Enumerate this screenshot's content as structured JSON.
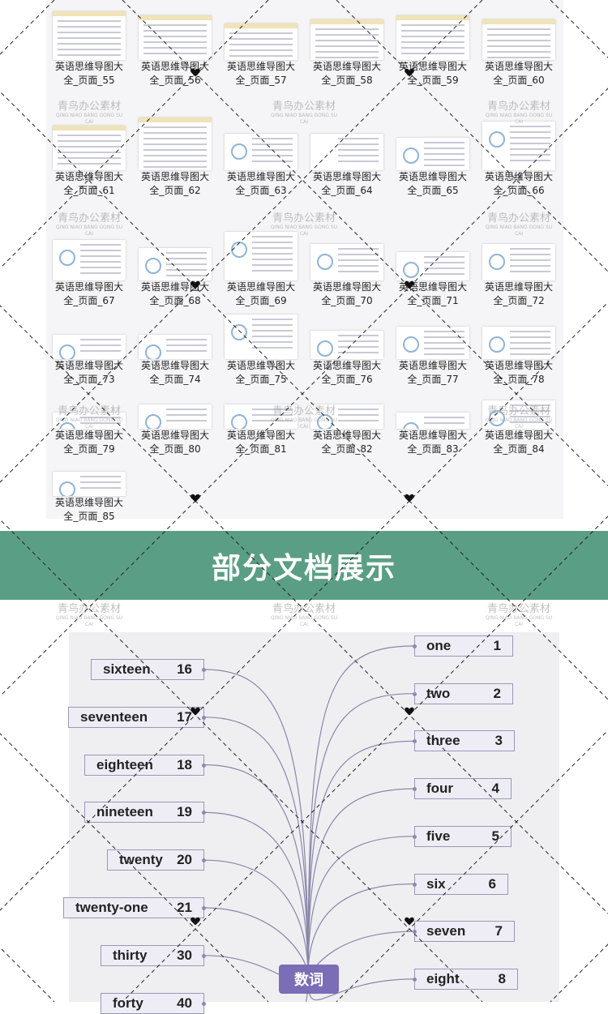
{
  "thumbnails": [
    {
      "label": "英语思维导图大全_页面_55"
    },
    {
      "label": "英语思维导图大全_页面_56"
    },
    {
      "label": "英语思维导图大全_页面_57"
    },
    {
      "label": "英语思维导图大全_页面_58"
    },
    {
      "label": "英语思维导图大全_页面_59"
    },
    {
      "label": "英语思维导图大全_页面_60"
    },
    {
      "label": "英语思维导图大全_页面_61"
    },
    {
      "label": "英语思维导图大全_页面_62"
    },
    {
      "label": "英语思维导图大全_页面_63"
    },
    {
      "label": "英语思维导图大全_页面_64"
    },
    {
      "label": "英语思维导图大全_页面_65"
    },
    {
      "label": "英语思维导图大全_页面_66"
    },
    {
      "label": "英语思维导图大全_页面_67"
    },
    {
      "label": "英语思维导图大全_页面_68"
    },
    {
      "label": "英语思维导图大全_页面_69"
    },
    {
      "label": "英语思维导图大全_页面_70"
    },
    {
      "label": "英语思维导图大全_页面_71"
    },
    {
      "label": "英语思维导图大全_页面_72"
    },
    {
      "label": "英语思维导图大全_页面_73"
    },
    {
      "label": "英语思维导图大全_页面_74"
    },
    {
      "label": "英语思维导图大全_页面_75"
    },
    {
      "label": "英语思维导图大全_页面_76"
    },
    {
      "label": "英语思维导图大全_页面_77"
    },
    {
      "label": "英语思维导图大全_页面_78"
    },
    {
      "label": "英语思维导图大全_页面_79"
    },
    {
      "label": "英语思维导图大全_页面_80"
    },
    {
      "label": "英语思维导图大全_页面_81"
    },
    {
      "label": "英语思维导图大全_页面_82"
    },
    {
      "label": "英语思维导图大全_页面_83"
    },
    {
      "label": "英语思维导图大全_页面_84"
    },
    {
      "label": "英语思维导图大全_页面_85"
    }
  ],
  "banner": {
    "title": "部分文档展示",
    "color": "#5b9e86"
  },
  "watermark": {
    "cn": "青鸟办公素材",
    "en": "QING NIAO BANG GONG SU CAI"
  },
  "mindmap": {
    "center": "数词",
    "center_color": "#7c6db7",
    "left": [
      {
        "word": "sixteen",
        "num": "16"
      },
      {
        "word": "seventeen",
        "num": "17"
      },
      {
        "word": "eighteen",
        "num": "18"
      },
      {
        "word": "nineteen",
        "num": "19"
      },
      {
        "word": "twenty",
        "num": "20"
      },
      {
        "word": "twenty-one",
        "num": "21"
      },
      {
        "word": "thirty",
        "num": "30"
      },
      {
        "word": "forty",
        "num": "40"
      }
    ],
    "right": [
      {
        "word": "one",
        "num": "1"
      },
      {
        "word": "two",
        "num": "2"
      },
      {
        "word": "three",
        "num": "3"
      },
      {
        "word": "four",
        "num": "4"
      },
      {
        "word": "five",
        "num": "5"
      },
      {
        "word": "six",
        "num": "6"
      },
      {
        "word": "seven",
        "num": "7"
      },
      {
        "word": "eight",
        "num": "8"
      }
    ]
  }
}
